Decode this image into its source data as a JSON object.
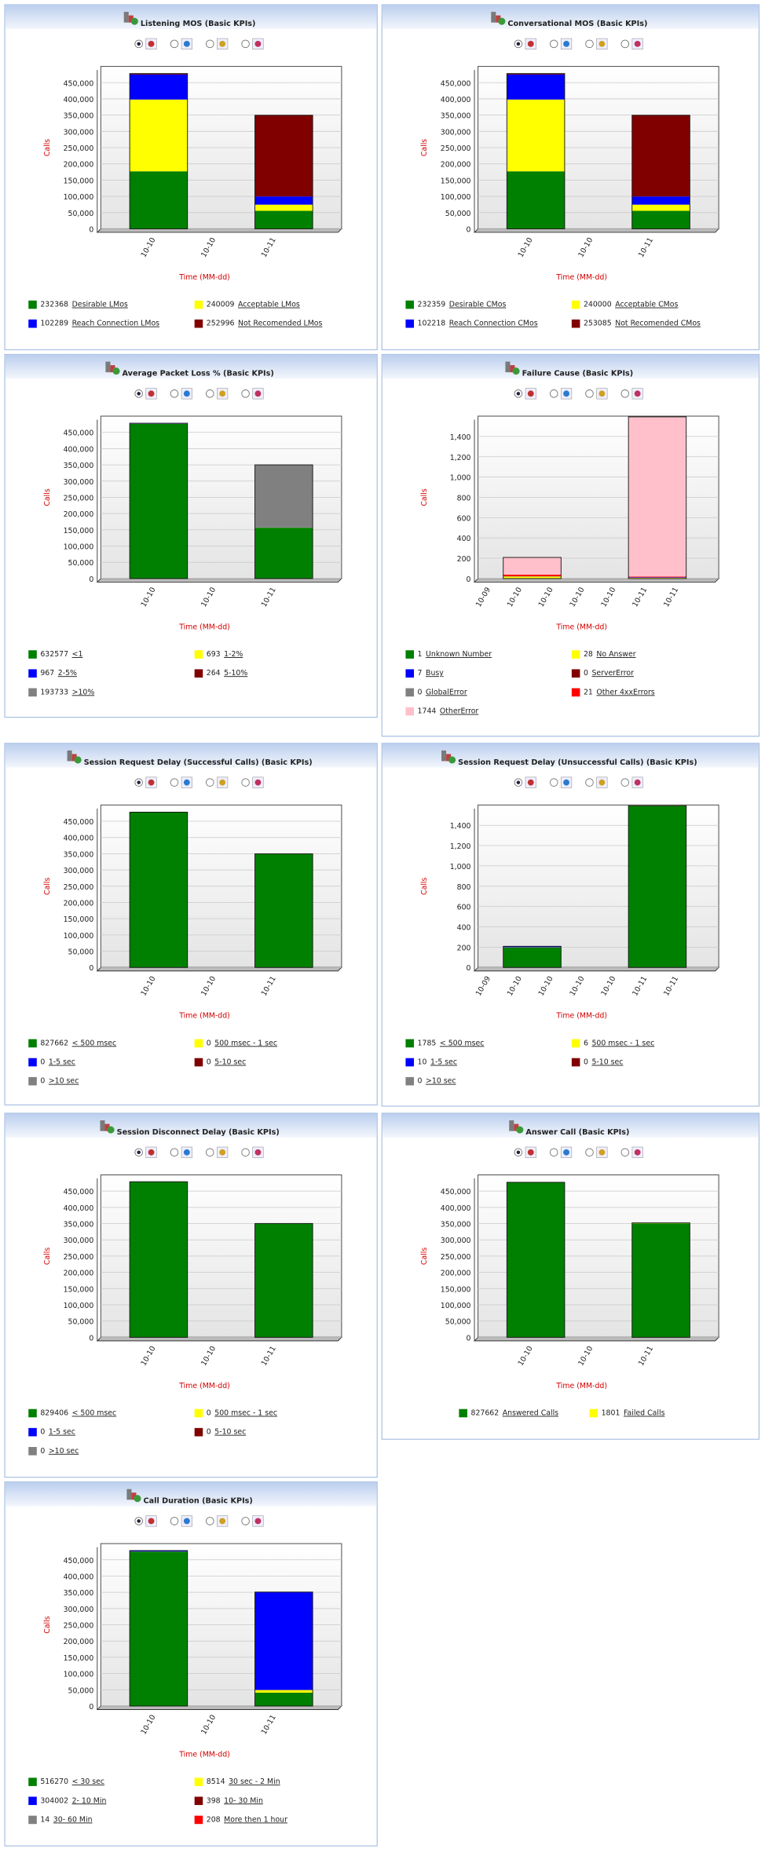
{
  "chart_data": [
    {
      "type": "bar",
      "stacked": true,
      "title": "Listening MOS (Basic KPIs)",
      "xlabel": "Time (MM-dd)",
      "ylabel": "Calls",
      "categories": [
        "10-10",
        "10-10",
        "10-11"
      ],
      "ylim": [
        0,
        500000
      ],
      "yticks": [
        0,
        {
          "value": 50000,
          "label": "50,000"
        },
        {
          "value": 100000,
          "label": "100,000"
        },
        {
          "value": 150000,
          "label": "150,000"
        },
        {
          "value": 200000,
          "label": "200,000"
        },
        {
          "value": 250000,
          "label": "250,000"
        },
        {
          "value": 300000,
          "label": "300,000"
        },
        {
          "value": 350000,
          "label": "350,000"
        },
        {
          "value": 400000,
          "label": "400,000"
        },
        {
          "value": 450000,
          "label": "450,000"
        }
      ],
      "grid": true,
      "series": [
        {
          "name": "Desirable LMos",
          "color": "#008000",
          "total": 232368,
          "values": [
            177000,
            null,
            55368
          ]
        },
        {
          "name": "Acceptable LMos",
          "color": "#ffff00",
          "total": 240009,
          "values": [
            221000,
            null,
            19009
          ]
        },
        {
          "name": "Reach Connection LMos",
          "color": "#0000ff",
          "total": 102289,
          "values": [
            77000,
            null,
            25289
          ]
        },
        {
          "name": "Not Recomended LMos",
          "color": "#800000",
          "total": 252996,
          "values": [
            3000,
            null,
            249996
          ]
        }
      ]
    },
    {
      "type": "bar",
      "stacked": true,
      "title": "Conversational MOS (Basic KPIs)",
      "xlabel": "Time (MM-dd)",
      "ylabel": "Calls",
      "categories": [
        "10-10",
        "10-10",
        "10-11"
      ],
      "ylim": [
        0,
        500000
      ],
      "yticks": [
        0,
        {
          "value": 50000,
          "label": "50,000"
        },
        {
          "value": 100000,
          "label": "100,000"
        },
        {
          "value": 150000,
          "label": "150,000"
        },
        {
          "value": 200000,
          "label": "200,000"
        },
        {
          "value": 250000,
          "label": "250,000"
        },
        {
          "value": 300000,
          "label": "300,000"
        },
        {
          "value": 350000,
          "label": "350,000"
        },
        {
          "value": 400000,
          "label": "400,000"
        },
        {
          "value": 450000,
          "label": "450,000"
        }
      ],
      "grid": true,
      "series": [
        {
          "name": "Desirable CMos",
          "color": "#008000",
          "total": 232359,
          "values": [
            177000,
            null,
            55359
          ]
        },
        {
          "name": "Acceptable CMos",
          "color": "#ffff00",
          "total": 240000,
          "values": [
            221000,
            null,
            19000
          ]
        },
        {
          "name": "Reach Connection CMos",
          "color": "#0000ff",
          "total": 102218,
          "values": [
            77000,
            null,
            25218
          ]
        },
        {
          "name": "Not Recomended CMos",
          "color": "#800000",
          "total": 253085,
          "values": [
            3000,
            null,
            250085
          ]
        }
      ]
    },
    {
      "type": "bar",
      "stacked": true,
      "title": "Average Packet Loss % (Basic KPIs)",
      "xlabel": "Time (MM-dd)",
      "ylabel": "Calls",
      "categories": [
        "10-10",
        "10-10",
        "10-11"
      ],
      "ylim": [
        0,
        500000
      ],
      "yticks": [
        0,
        {
          "value": 50000,
          "label": "50,000"
        },
        {
          "value": 100000,
          "label": "100,000"
        },
        {
          "value": 150000,
          "label": "150,000"
        },
        {
          "value": 200000,
          "label": "200,000"
        },
        {
          "value": 250000,
          "label": "250,000"
        },
        {
          "value": 300000,
          "label": "300,000"
        },
        {
          "value": 350000,
          "label": "350,000"
        },
        {
          "value": 400000,
          "label": "400,000"
        },
        {
          "value": 450000,
          "label": "450,000"
        }
      ],
      "grid": true,
      "series": [
        {
          "name": "<1",
          "color": "#008000",
          "total": 632577,
          "values": [
            476000,
            null,
            156577
          ]
        },
        {
          "name": "1-2%",
          "color": "#ffff00",
          "total": 693,
          "values": [
            400,
            null,
            293
          ]
        },
        {
          "name": "2-5%",
          "color": "#0000ff",
          "total": 967,
          "values": [
            600,
            null,
            367
          ]
        },
        {
          "name": "5-10%",
          "color": "#800000",
          "total": 264,
          "values": [
            200,
            null,
            64
          ]
        },
        {
          "name": ">10%",
          "color": "#808080",
          "total": 193733,
          "values": [
            1000,
            null,
            192733
          ]
        }
      ]
    },
    {
      "type": "bar",
      "stacked": true,
      "title": "Failure Cause (Basic KPIs)",
      "xlabel": "Time (MM-dd)",
      "ylabel": "Calls",
      "categories": [
        "10-09",
        "10-10",
        "10-10",
        "10-10",
        "10-10",
        "10-11",
        "10-11"
      ],
      "ylim": [
        0,
        1600
      ],
      "yticks": [
        0,
        200,
        400,
        600,
        800,
        {
          "value": 1000,
          "label": "1,000"
        },
        {
          "value": 1200,
          "label": "1,200"
        },
        {
          "value": 1400,
          "label": "1,400"
        }
      ],
      "grid": true,
      "series": [
        {
          "name": "Unknown Number",
          "color": "#008000",
          "total": 1,
          "values": [
            null,
            1,
            null,
            null,
            null,
            0,
            null
          ]
        },
        {
          "name": "No Answer",
          "color": "#ffff00",
          "total": 28,
          "values": [
            null,
            20,
            null,
            null,
            null,
            8,
            null
          ]
        },
        {
          "name": "Busy",
          "color": "#0000ff",
          "total": 7,
          "values": [
            null,
            2,
            null,
            null,
            null,
            5,
            null
          ]
        },
        {
          "name": "ServerError",
          "color": "#800000",
          "total": 0,
          "values": [
            null,
            0,
            null,
            null,
            null,
            0,
            null
          ]
        },
        {
          "name": "GlobalError",
          "color": "#808080",
          "total": 0,
          "values": [
            null,
            0,
            null,
            null,
            null,
            0,
            null
          ]
        },
        {
          "name": "Other 4xxErrors",
          "color": "#ff0000",
          "total": 21,
          "values": [
            null,
            15,
            null,
            null,
            null,
            6,
            null
          ]
        },
        {
          "name": "OtherError",
          "color": "#ffc0cb",
          "total": 1744,
          "values": [
            null,
            170,
            null,
            null,
            null,
            1574,
            null
          ]
        }
      ]
    },
    {
      "type": "bar",
      "stacked": true,
      "title": "Session Request Delay (Successful Calls) (Basic KPIs)",
      "xlabel": "Time (MM-dd)",
      "ylabel": "Calls",
      "categories": [
        "10-10",
        "10-10",
        "10-11"
      ],
      "ylim": [
        0,
        500000
      ],
      "yticks": [
        0,
        {
          "value": 50000,
          "label": "50,000"
        },
        {
          "value": 100000,
          "label": "100,000"
        },
        {
          "value": 150000,
          "label": "150,000"
        },
        {
          "value": 200000,
          "label": "200,000"
        },
        {
          "value": 250000,
          "label": "250,000"
        },
        {
          "value": 300000,
          "label": "300,000"
        },
        {
          "value": 350000,
          "label": "350,000"
        },
        {
          "value": 400000,
          "label": "400,000"
        },
        {
          "value": 450000,
          "label": "450,000"
        }
      ],
      "grid": true,
      "series": [
        {
          "name": "< 500 msec",
          "color": "#008000",
          "total": 827662,
          "values": [
            478000,
            null,
            349662
          ]
        },
        {
          "name": "500 msec - 1 sec",
          "color": "#ffff00",
          "total": 0,
          "values": [
            0,
            null,
            0
          ]
        },
        {
          "name": "1-5 sec",
          "color": "#0000ff",
          "total": 0,
          "values": [
            0,
            null,
            0
          ]
        },
        {
          "name": "5-10 sec",
          "color": "#800000",
          "total": 0,
          "values": [
            0,
            null,
            0
          ]
        },
        {
          "name": ">10 sec",
          "color": "#808080",
          "total": 0,
          "values": [
            0,
            null,
            0
          ]
        }
      ]
    },
    {
      "type": "bar",
      "stacked": true,
      "title": "Session Request Delay (Unsuccessful Calls) (Basic KPIs)",
      "xlabel": "Time (MM-dd)",
      "ylabel": "Calls",
      "categories": [
        "10-09",
        "10-10",
        "10-10",
        "10-10",
        "10-10",
        "10-11",
        "10-11"
      ],
      "ylim": [
        0,
        1600
      ],
      "yticks": [
        0,
        200,
        400,
        600,
        800,
        {
          "value": 1000,
          "label": "1,000"
        },
        {
          "value": 1200,
          "label": "1,200"
        },
        {
          "value": 1400,
          "label": "1,400"
        }
      ],
      "grid": true,
      "series": [
        {
          "name": "< 500 msec",
          "color": "#008000",
          "total": 1785,
          "values": [
            null,
            195,
            null,
            null,
            null,
            1590,
            null
          ]
        },
        {
          "name": "500 msec - 1 sec",
          "color": "#ffff00",
          "total": 6,
          "values": [
            null,
            3,
            null,
            null,
            null,
            3,
            null
          ]
        },
        {
          "name": "1-5 sec",
          "color": "#0000ff",
          "total": 10,
          "values": [
            null,
            10,
            null,
            null,
            null,
            0,
            null
          ]
        },
        {
          "name": "5-10 sec",
          "color": "#800000",
          "total": 0,
          "values": [
            null,
            0,
            null,
            null,
            null,
            0,
            null
          ]
        },
        {
          "name": ">10 sec",
          "color": "#808080",
          "total": 0,
          "values": [
            null,
            0,
            null,
            null,
            null,
            0,
            null
          ]
        }
      ]
    },
    {
      "type": "bar",
      "stacked": true,
      "title": "Session Disconnect Delay (Basic KPIs)",
      "xlabel": "Time (MM-dd)",
      "ylabel": "Calls",
      "categories": [
        "10-10",
        "10-10",
        "10-11"
      ],
      "ylim": [
        0,
        500000
      ],
      "yticks": [
        0,
        {
          "value": 50000,
          "label": "50,000"
        },
        {
          "value": 100000,
          "label": "100,000"
        },
        {
          "value": 150000,
          "label": "150,000"
        },
        {
          "value": 200000,
          "label": "200,000"
        },
        {
          "value": 250000,
          "label": "250,000"
        },
        {
          "value": 300000,
          "label": "300,000"
        },
        {
          "value": 350000,
          "label": "350,000"
        },
        {
          "value": 400000,
          "label": "400,000"
        },
        {
          "value": 450000,
          "label": "450,000"
        }
      ],
      "grid": true,
      "series": [
        {
          "name": "< 500 msec",
          "color": "#008000",
          "total": 829406,
          "values": [
            479000,
            null,
            350406
          ]
        },
        {
          "name": "500 msec - 1 sec",
          "color": "#ffff00",
          "total": 0,
          "values": [
            0,
            null,
            0
          ]
        },
        {
          "name": "1-5 sec",
          "color": "#0000ff",
          "total": 0,
          "values": [
            0,
            null,
            0
          ]
        },
        {
          "name": "5-10 sec",
          "color": "#800000",
          "total": 0,
          "values": [
            0,
            null,
            0
          ]
        },
        {
          "name": ">10 sec",
          "color": "#808080",
          "total": 0,
          "values": [
            0,
            null,
            0
          ]
        }
      ]
    },
    {
      "type": "bar",
      "stacked": true,
      "title": "Answer Call (Basic KPIs)",
      "xlabel": "Time (MM-dd)",
      "ylabel": "Calls",
      "categories": [
        "10-10",
        "10-10",
        "10-11"
      ],
      "ylim": [
        0,
        500000
      ],
      "yticks": [
        0,
        {
          "value": 50000,
          "label": "50,000"
        },
        {
          "value": 100000,
          "label": "100,000"
        },
        {
          "value": 150000,
          "label": "150,000"
        },
        {
          "value": 200000,
          "label": "200,000"
        },
        {
          "value": 250000,
          "label": "250,000"
        },
        {
          "value": 300000,
          "label": "300,000"
        },
        {
          "value": 350000,
          "label": "350,000"
        },
        {
          "value": 400000,
          "label": "400,000"
        },
        {
          "value": 450000,
          "label": "450,000"
        }
      ],
      "grid": true,
      "series": [
        {
          "name": "Answered Calls",
          "color": "#008000",
          "total": 827662,
          "values": [
            477000,
            null,
            350662
          ]
        },
        {
          "name": "Failed Calls",
          "color": "#ffff00",
          "total": 1801,
          "values": [
            208,
            null,
            1593
          ]
        }
      ]
    },
    {
      "type": "bar",
      "stacked": true,
      "title": "Call Duration (Basic KPIs)",
      "xlabel": "Time (MM-dd)",
      "ylabel": "Calls",
      "categories": [
        "10-10",
        "10-10",
        "10-11"
      ],
      "ylim": [
        0,
        500000
      ],
      "yticks": [
        0,
        {
          "value": 50000,
          "label": "50,000"
        },
        {
          "value": 100000,
          "label": "100,000"
        },
        {
          "value": 150000,
          "label": "150,000"
        },
        {
          "value": 200000,
          "label": "200,000"
        },
        {
          "value": 250000,
          "label": "250,000"
        },
        {
          "value": 300000,
          "label": "300,000"
        },
        {
          "value": 350000,
          "label": "350,000"
        },
        {
          "value": 400000,
          "label": "400,000"
        },
        {
          "value": 450000,
          "label": "450,000"
        }
      ],
      "grid": true,
      "series": [
        {
          "name": "< 30 sec",
          "color": "#008000",
          "total": 516270,
          "values": [
            475000,
            null,
            41270
          ]
        },
        {
          "name": "30 sec - 2 Min",
          "color": "#ffff00",
          "total": 8514,
          "values": [
            500,
            null,
            8014
          ]
        },
        {
          "name": "2- 10 Min",
          "color": "#0000ff",
          "total": 304002,
          "values": [
            3000,
            null,
            301002
          ]
        },
        {
          "name": "10- 30 Min",
          "color": "#800000",
          "total": 398,
          "values": [
            0,
            null,
            398
          ]
        },
        {
          "name": "30- 60 Min",
          "color": "#808080",
          "total": 14,
          "values": [
            0,
            null,
            14
          ]
        },
        {
          "name": "More then 1 hour",
          "color": "#ff0000",
          "total": 208,
          "values": [
            0,
            null,
            208
          ]
        }
      ]
    }
  ]
}
